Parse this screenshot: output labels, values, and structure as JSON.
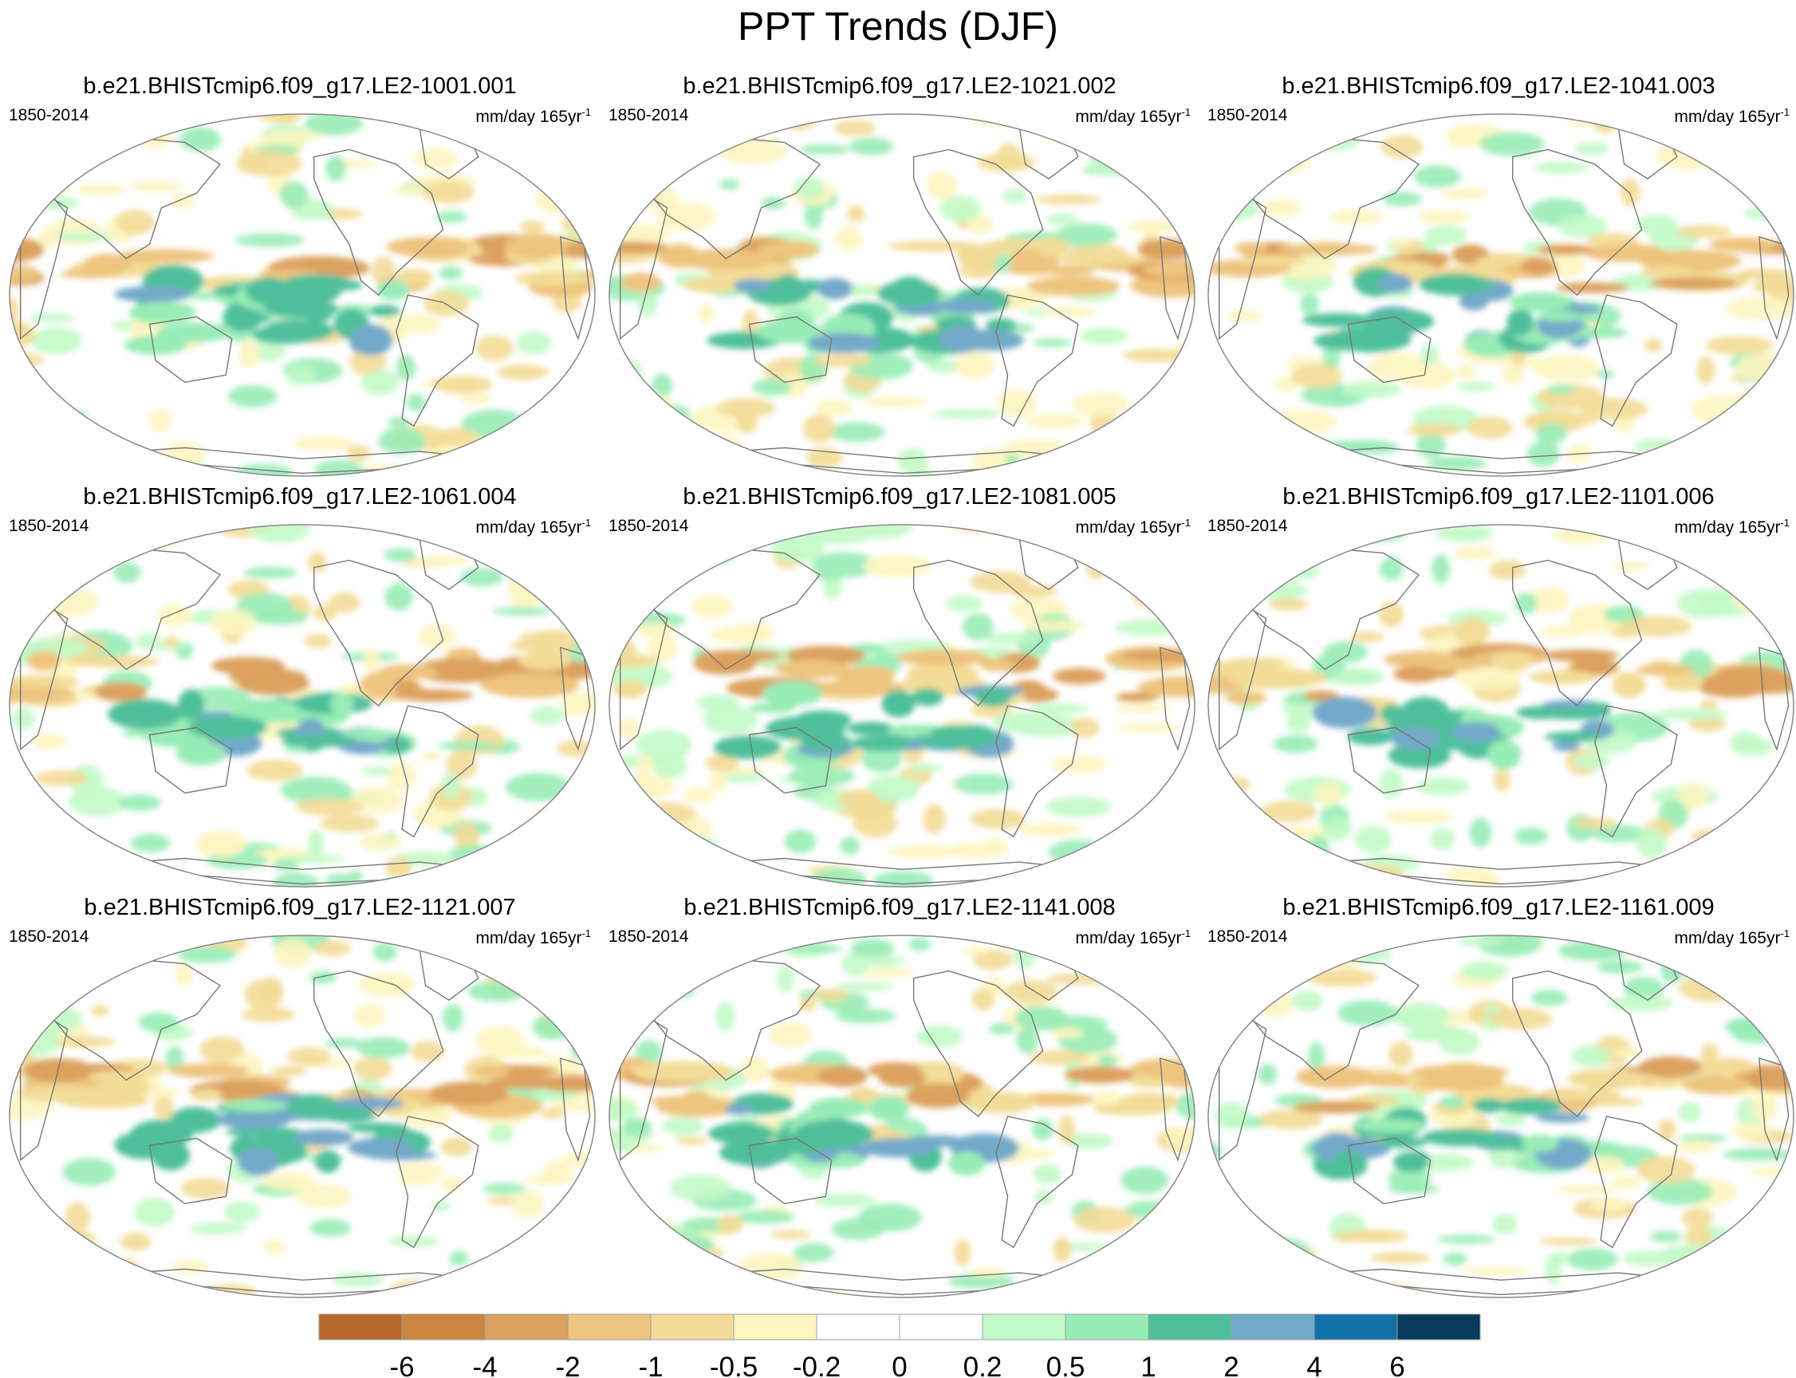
{
  "title": "PPT Trends (DJF)",
  "panels": [
    {
      "title": "b.e21.BHISTcmip6.f09_g17.LE2-1001.001",
      "period": "1850-2014",
      "units": "mm/day 165yr",
      "units_exp": "-1"
    },
    {
      "title": "b.e21.BHISTcmip6.f09_g17.LE2-1021.002",
      "period": "1850-2014",
      "units": "mm/day 165yr",
      "units_exp": "-1"
    },
    {
      "title": "b.e21.BHISTcmip6.f09_g17.LE2-1041.003",
      "period": "1850-2014",
      "units": "mm/day 165yr",
      "units_exp": "-1"
    },
    {
      "title": "b.e21.BHISTcmip6.f09_g17.LE2-1061.004",
      "period": "1850-2014",
      "units": "mm/day 165yr",
      "units_exp": "-1"
    },
    {
      "title": "b.e21.BHISTcmip6.f09_g17.LE2-1081.005",
      "period": "1850-2014",
      "units": "mm/day 165yr",
      "units_exp": "-1"
    },
    {
      "title": "b.e21.BHISTcmip6.f09_g17.LE2-1101.006",
      "period": "1850-2014",
      "units": "mm/day 165yr",
      "units_exp": "-1"
    },
    {
      "title": "b.e21.BHISTcmip6.f09_g17.LE2-1121.007",
      "period": "1850-2014",
      "units": "mm/day 165yr",
      "units_exp": "-1"
    },
    {
      "title": "b.e21.BHISTcmip6.f09_g17.LE2-1141.008",
      "period": "1850-2014",
      "units": "mm/day 165yr",
      "units_exp": "-1"
    },
    {
      "title": "b.e21.BHISTcmip6.f09_g17.LE2-1161.009",
      "period": "1850-2014",
      "units": "mm/day 165yr",
      "units_exp": "-1"
    }
  ],
  "colorbar": {
    "colors": [
      "#b5682a",
      "#cd8640",
      "#dca15e",
      "#eec47e",
      "#f3dc97",
      "#fdf5c0",
      "#ffffff",
      "#ffffff",
      "#c2fac7",
      "#98ecb6",
      "#4fc09b",
      "#73a9c9",
      "#1371aa",
      "#073a5a"
    ],
    "labels": [
      "-6",
      "-4",
      "-2",
      "-1",
      "-0.5",
      "-0.2",
      "0",
      "0.2",
      "0.5",
      "1",
      "2",
      "4",
      "6"
    ]
  },
  "colors": {
    "coastline": "#777777",
    "map_border": "#888888"
  }
}
